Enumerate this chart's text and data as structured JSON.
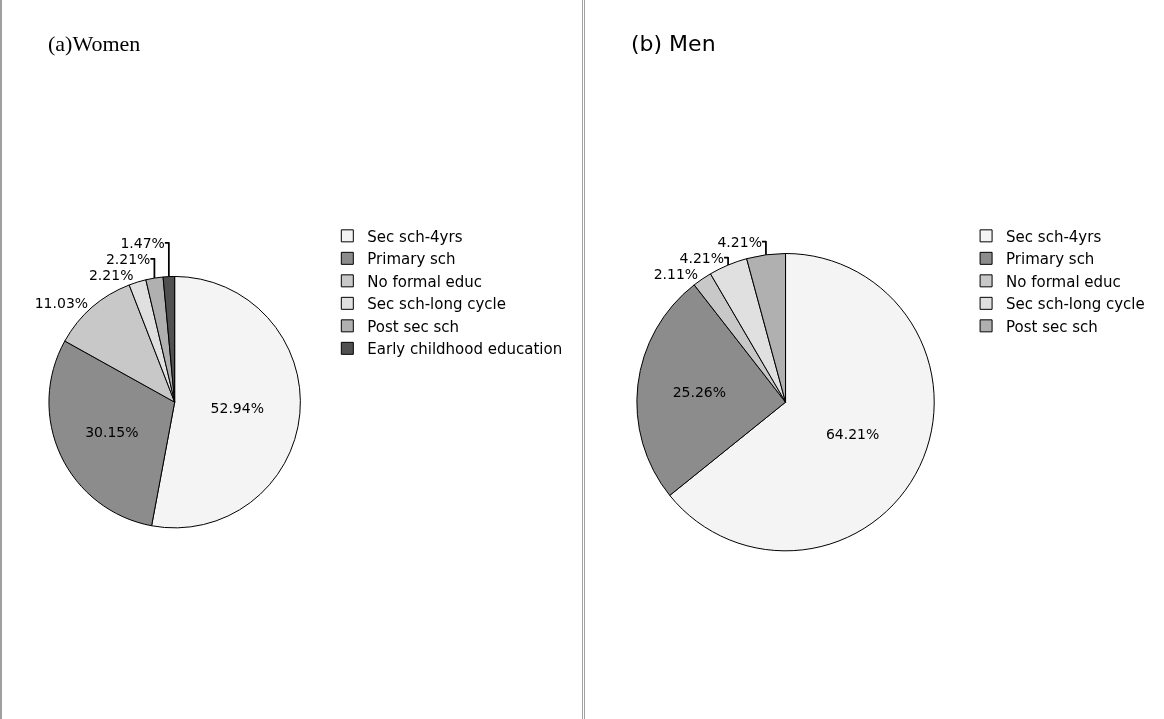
{
  "chart_data": [
    {
      "type": "pie",
      "title": "(a)Women",
      "legend": "right",
      "categories": [
        "Sec sch-4yrs",
        "Primary sch",
        "No formal educ",
        "Sec sch-long cycle",
        "Post sec sch",
        "Early childhood education"
      ],
      "values": [
        52.94,
        30.15,
        11.03,
        2.21,
        2.21,
        1.47
      ],
      "value_labels": [
        "52.94%",
        "30.15%",
        "11.03%",
        "2.21%",
        "2.21%",
        "1.47%"
      ],
      "colors": [
        "#f4f4f4",
        "#8c8c8c",
        "#c8c8c8",
        "#e0e0e0",
        "#b0b0b0",
        "#505050"
      ]
    },
    {
      "type": "pie",
      "title": "(b) Men",
      "legend": "right",
      "categories": [
        "Sec sch-4yrs",
        "Primary sch",
        "No formal educ",
        "Sec sch-long cycle",
        "Post sec sch"
      ],
      "values": [
        64.21,
        25.26,
        2.11,
        4.21,
        4.21
      ],
      "value_labels": [
        "64.21%",
        "25.26%",
        "2.11%",
        "4.21%",
        "4.21%"
      ],
      "colors": [
        "#f4f4f4",
        "#8c8c8c",
        "#c8c8c8",
        "#e0e0e0",
        "#b0b0b0"
      ]
    }
  ]
}
